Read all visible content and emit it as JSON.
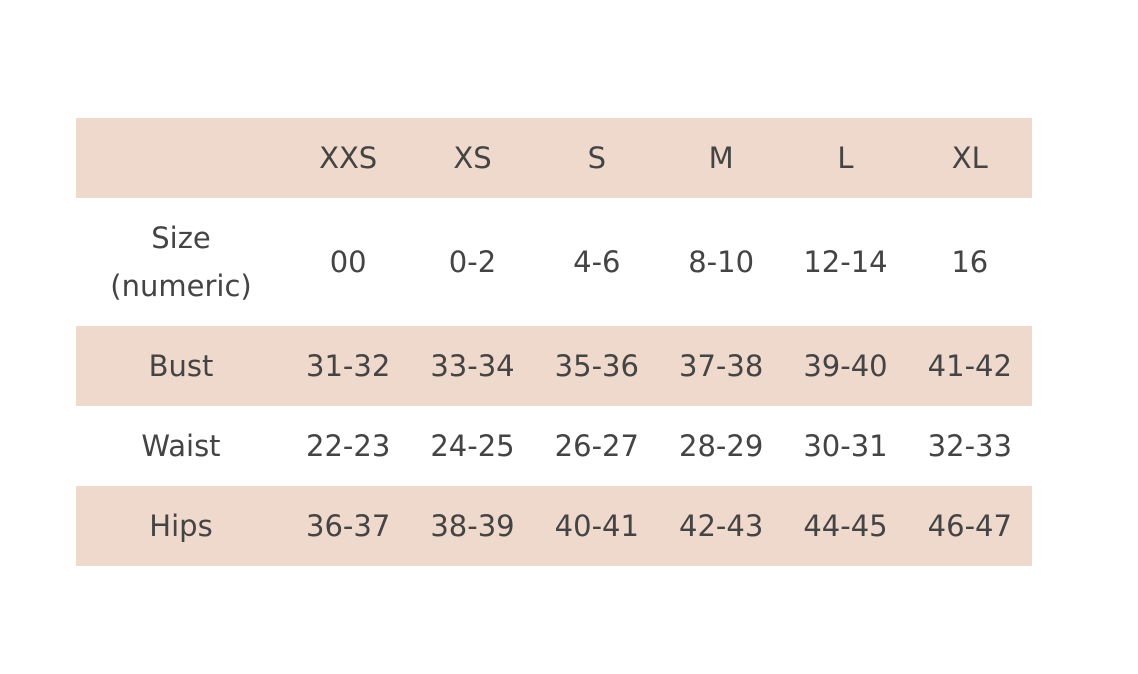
{
  "table": {
    "columns": [
      "XXS",
      "XS",
      "S",
      "M",
      "L",
      "XL"
    ],
    "rows": [
      {
        "label": "Size (numeric)",
        "values": [
          "00",
          "0-2",
          "4-6",
          "8-10",
          "12-14",
          "16"
        ]
      },
      {
        "label": "Bust",
        "values": [
          "31-32",
          "33-34",
          "35-36",
          "37-38",
          "39-40",
          "41-42"
        ]
      },
      {
        "label": "Waist",
        "values": [
          "22-23",
          "24-25",
          "26-27",
          "28-29",
          "30-31",
          "32-33"
        ]
      },
      {
        "label": "Hips",
        "values": [
          "36-37",
          "38-39",
          "40-41",
          "42-43",
          "44-45",
          "46-47"
        ]
      }
    ]
  }
}
